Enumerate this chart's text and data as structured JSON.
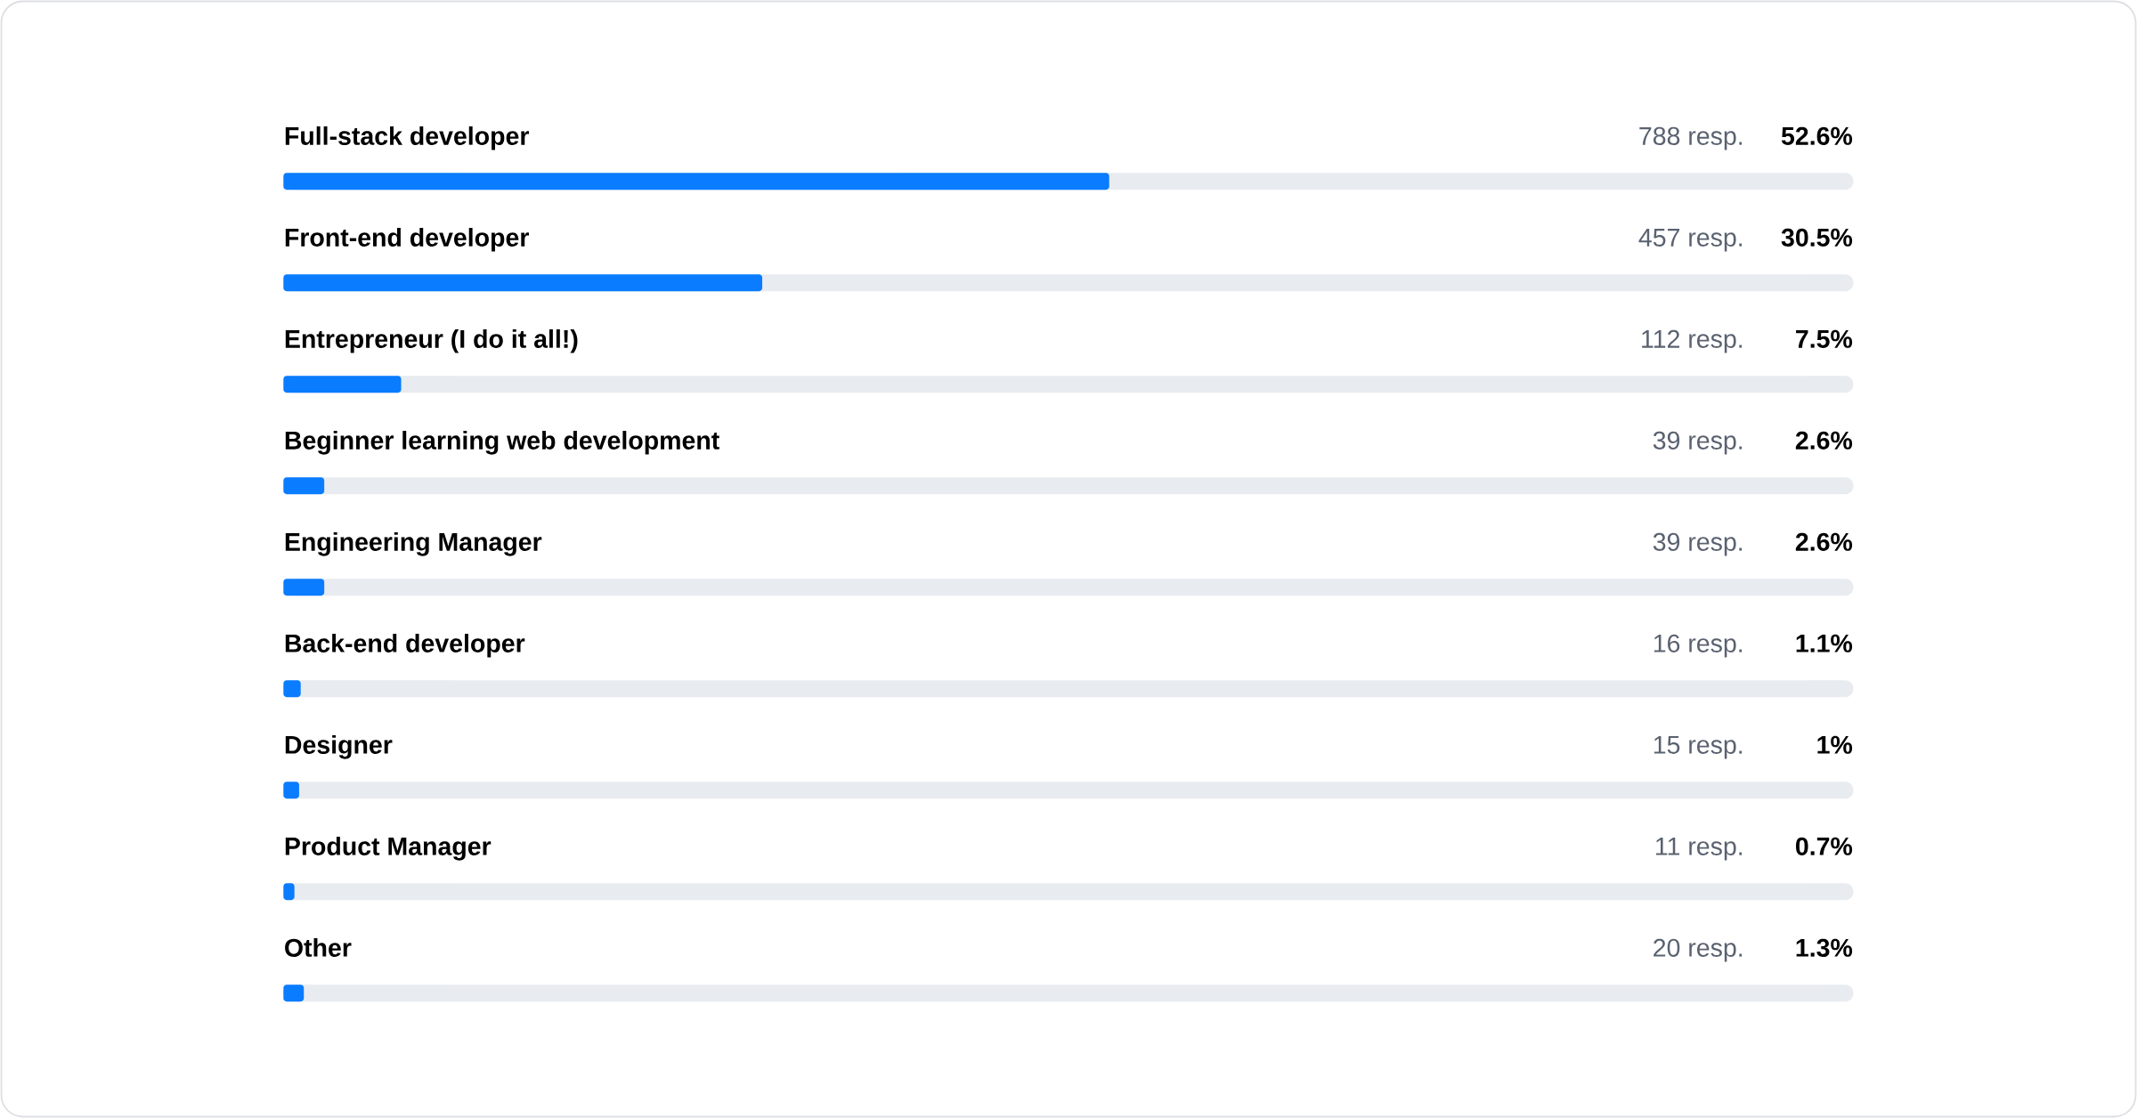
{
  "chart_data": {
    "type": "bar",
    "orientation": "horizontal",
    "categories": [
      "Full-stack developer",
      "Front-end developer",
      "Entrepreneur (I do it all!)",
      "Beginner learning web development",
      "Engineering Manager",
      "Back-end developer",
      "Designer",
      "Product Manager",
      "Other"
    ],
    "values": [
      52.6,
      30.5,
      7.5,
      2.6,
      2.6,
      1.1,
      1,
      0.7,
      1.3
    ],
    "value_labels": [
      "52.6%",
      "30.5%",
      "7.5%",
      "2.6%",
      "2.6%",
      "1.1%",
      "1%",
      "0.7%",
      "1.3%"
    ],
    "annotations": [
      "788 resp.",
      "457 resp.",
      "112 resp.",
      "39 resp.",
      "39 resp.",
      "16 resp.",
      "15 resp.",
      "11 resp.",
      "20 resp."
    ],
    "color": "#0a7cff",
    "xlim": [
      0,
      100
    ]
  }
}
